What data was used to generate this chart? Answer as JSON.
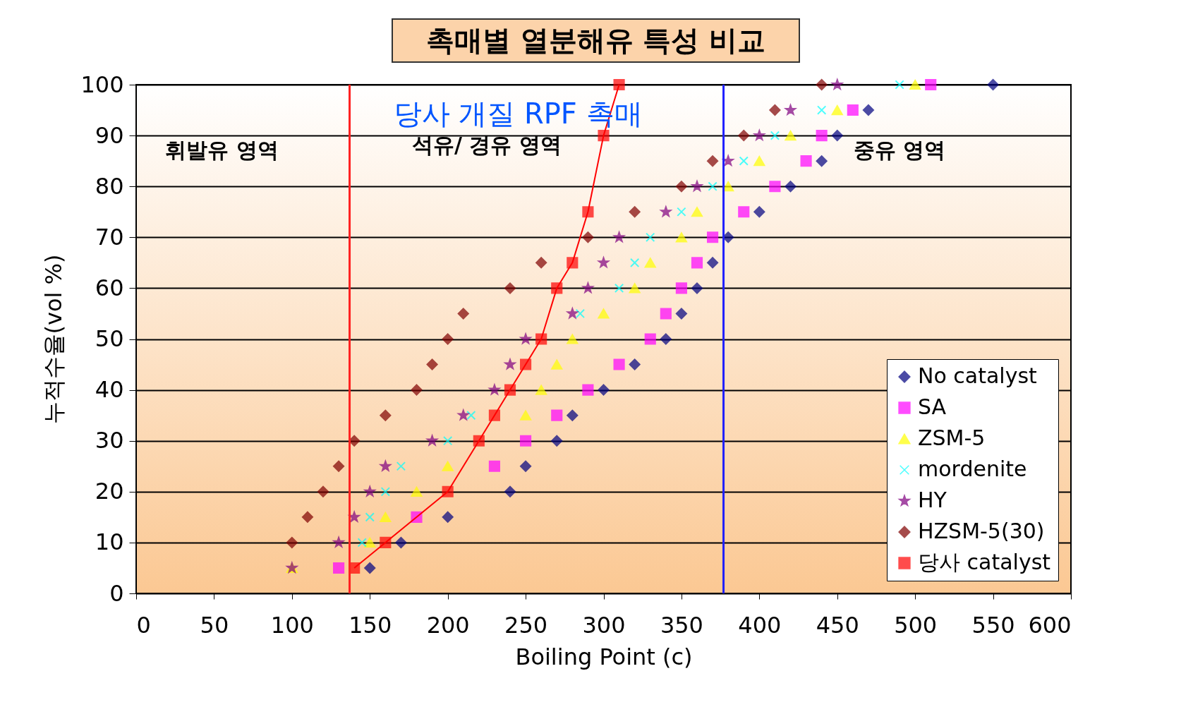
{
  "chart_data": {
    "type": "scatter",
    "title": "촉매별 열분해유 특성 비교",
    "xlabel": "Boiling Point (c)",
    "ylabel": "누적수율(vol %)",
    "xlim": [
      0,
      600
    ],
    "xticks": [
      0,
      50,
      100,
      150,
      200,
      250,
      300,
      350,
      400,
      450,
      500,
      550,
      600
    ],
    "ylim": [
      0,
      100
    ],
    "yticks": [
      0,
      10,
      20,
      30,
      40,
      50,
      60,
      70,
      80,
      90,
      100
    ],
    "grid": "y",
    "legend": "bottom right",
    "series": [
      {
        "name": "No catalyst",
        "color": "#000080",
        "marker": "diamond",
        "x": [
          150,
          170,
          200,
          240,
          250,
          270,
          280,
          300,
          320,
          340,
          350,
          360,
          370,
          380,
          400,
          420,
          440,
          450,
          470,
          550
        ],
        "values": [
          5,
          10,
          15,
          20,
          25,
          30,
          35,
          40,
          45,
          50,
          55,
          60,
          65,
          70,
          75,
          80,
          85,
          90,
          95,
          100
        ]
      },
      {
        "name": "SA",
        "color": "#ff00ff",
        "marker": "square",
        "x": [
          130,
          180,
          230,
          250,
          270,
          290,
          310,
          330,
          340,
          350,
          360,
          370,
          390,
          410,
          430,
          440,
          460,
          510
        ],
        "values": [
          5,
          15,
          25,
          30,
          35,
          40,
          45,
          50,
          55,
          60,
          65,
          70,
          75,
          80,
          85,
          90,
          95,
          100
        ]
      },
      {
        "name": "ZSM-5",
        "color": "#ffff00",
        "marker": "triangle",
        "x": [
          100,
          150,
          160,
          180,
          200,
          250,
          260,
          270,
          280,
          300,
          320,
          330,
          350,
          360,
          380,
          400,
          420,
          450,
          500
        ],
        "values": [
          5,
          10,
          15,
          20,
          25,
          35,
          40,
          45,
          50,
          55,
          60,
          65,
          70,
          75,
          80,
          85,
          90,
          95,
          100
        ]
      },
      {
        "name": "mordenite",
        "color": "#00ffff",
        "marker": "cross",
        "x": [
          145,
          150,
          160,
          170,
          200,
          215,
          285,
          310,
          320,
          330,
          350,
          370,
          390,
          410,
          440,
          490
        ],
        "values": [
          10,
          15,
          20,
          25,
          30,
          35,
          55,
          60,
          65,
          70,
          75,
          80,
          85,
          90,
          95,
          100
        ]
      },
      {
        "name": "HY",
        "color": "#800080",
        "marker": "star",
        "x": [
          100,
          130,
          140,
          150,
          160,
          190,
          210,
          230,
          240,
          250,
          280,
          290,
          300,
          310,
          340,
          360,
          380,
          400,
          420,
          450
        ],
        "values": [
          5,
          10,
          15,
          20,
          25,
          30,
          35,
          40,
          45,
          50,
          55,
          60,
          65,
          70,
          75,
          80,
          85,
          90,
          95,
          100
        ]
      },
      {
        "name": "HZSM-5(30)",
        "color": "#800000",
        "marker": "diamond",
        "x": [
          100,
          110,
          120,
          130,
          140,
          160,
          180,
          190,
          200,
          210,
          240,
          260,
          290,
          320,
          350,
          370,
          390,
          410,
          440
        ],
        "values": [
          10,
          15,
          20,
          25,
          30,
          35,
          40,
          45,
          50,
          55,
          60,
          65,
          70,
          75,
          80,
          85,
          90,
          95,
          100
        ]
      },
      {
        "name": "당사 catalyst",
        "color": "#ff0000",
        "type": "line",
        "marker": "square",
        "x": [
          140,
          160,
          200,
          220,
          230,
          240,
          250,
          260,
          270,
          280,
          290,
          300,
          310
        ],
        "values": [
          5,
          10,
          20,
          30,
          35,
          40,
          45,
          50,
          60,
          65,
          75,
          90,
          100
        ]
      }
    ],
    "ref_lines": [
      {
        "axis": "x",
        "value": 137,
        "color": "#ff2020"
      },
      {
        "axis": "x",
        "value": 377,
        "color": "#2020ff"
      }
    ],
    "annotations": [
      "휘발유 영역",
      "석유/ 경유 영역",
      "중유 영역",
      "당사 개질  RPF 촉매"
    ]
  }
}
